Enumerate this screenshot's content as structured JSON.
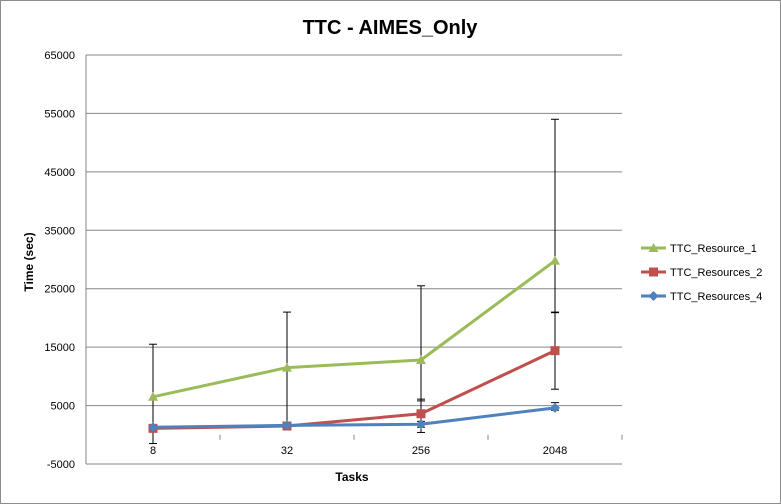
{
  "chart_data": {
    "type": "line",
    "title": "TTC - AIMES_Only",
    "xlabel": "Tasks",
    "ylabel": "Time (sec)",
    "categories": [
      "8",
      "32",
      "256",
      "2048"
    ],
    "ylim": [
      -5000,
      65000
    ],
    "yticks": [
      -5000,
      5000,
      15000,
      25000,
      35000,
      45000,
      55000,
      65000
    ],
    "grid": "horizontal",
    "legend_position": "right",
    "series": [
      {
        "name": "TTC_Resource_1",
        "color": "#9bbb59",
        "marker": "triangle",
        "values": [
          6500,
          11500,
          12800,
          29800
        ],
        "err_low": [
          -1500,
          1800,
          5800,
          20900
        ],
        "err_high": [
          15500,
          21000,
          25500,
          54000
        ]
      },
      {
        "name": "TTC_Resources_2",
        "color": "#c0504d",
        "marker": "square",
        "values": [
          1100,
          1500,
          3600,
          14400
        ],
        "err_low": [
          700,
          1000,
          400,
          7800
        ],
        "err_high": [
          1500,
          2000,
          6100,
          21000
        ]
      },
      {
        "name": "TTC_Resources_4",
        "color": "#4f81bd",
        "marker": "diamond",
        "values": [
          1300,
          1600,
          1800,
          4600
        ],
        "err_low": [
          900,
          1200,
          1300,
          4200
        ],
        "err_high": [
          1700,
          2000,
          2300,
          5500
        ]
      }
    ]
  }
}
